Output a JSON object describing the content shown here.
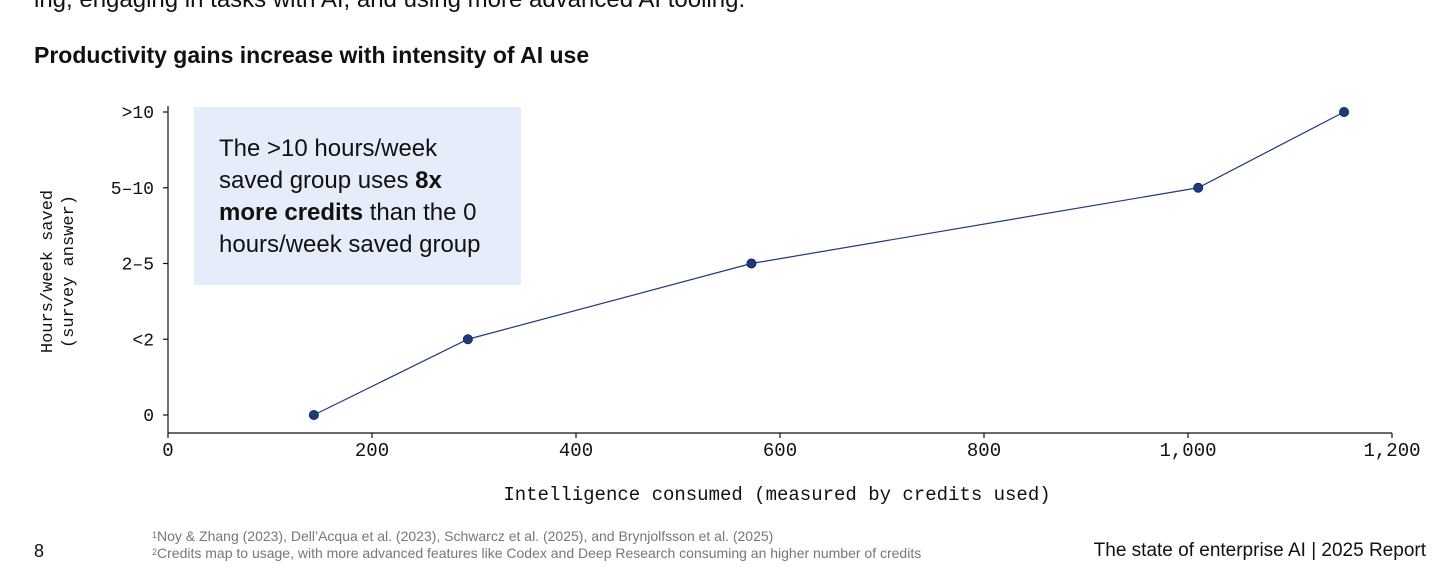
{
  "page": {
    "top_fragment": "ing, engaging in tasks with AI, and using more advanced AI tooling.",
    "page_number": "8",
    "report_label": "The state of enterprise AI  |  2025 Report",
    "footnotes": [
      {
        "marker": "1",
        "text": "Noy & Zhang (2023), Dell’Acqua et al. (2023), Schwarcz et al. (2025), and Brynjolfsson et al. (2025)"
      },
      {
        "marker": "2",
        "text": "Credits map to usage, with more advanced features like Codex and Deep Research consuming an higher number of credits"
      }
    ]
  },
  "callout": {
    "text_1": "The >10 hours/week saved group uses ",
    "text_bold": "8x more credits",
    "text_2": " than the 0 hours/week saved group"
  },
  "chart_data": {
    "type": "line",
    "title": "Productivity gains increase with intensity of AI use",
    "xlabel": "Intelligence consumed (measured by credits used)",
    "ylabel_lines": [
      "Hours/week saved",
      "(survey answer)"
    ],
    "xlim": [
      0,
      1200
    ],
    "x_ticks": [
      0,
      200,
      400,
      600,
      800,
      1000,
      1200
    ],
    "x_tick_labels": [
      "0",
      "200",
      "400",
      "600",
      "800",
      "1,000",
      "1,200"
    ],
    "categories": [
      "0",
      "<2",
      "2–5",
      "5–10",
      ">10"
    ],
    "series": [
      {
        "name": "Hours/week saved",
        "color": "#1f3a7a",
        "points": [
          {
            "x": 143,
            "category": "0"
          },
          {
            "x": 294,
            "category": "<2"
          },
          {
            "x": 572,
            "category": "2–5"
          },
          {
            "x": 1010,
            "category": "5–10"
          },
          {
            "x": 1153,
            "category": ">10"
          }
        ]
      }
    ]
  }
}
